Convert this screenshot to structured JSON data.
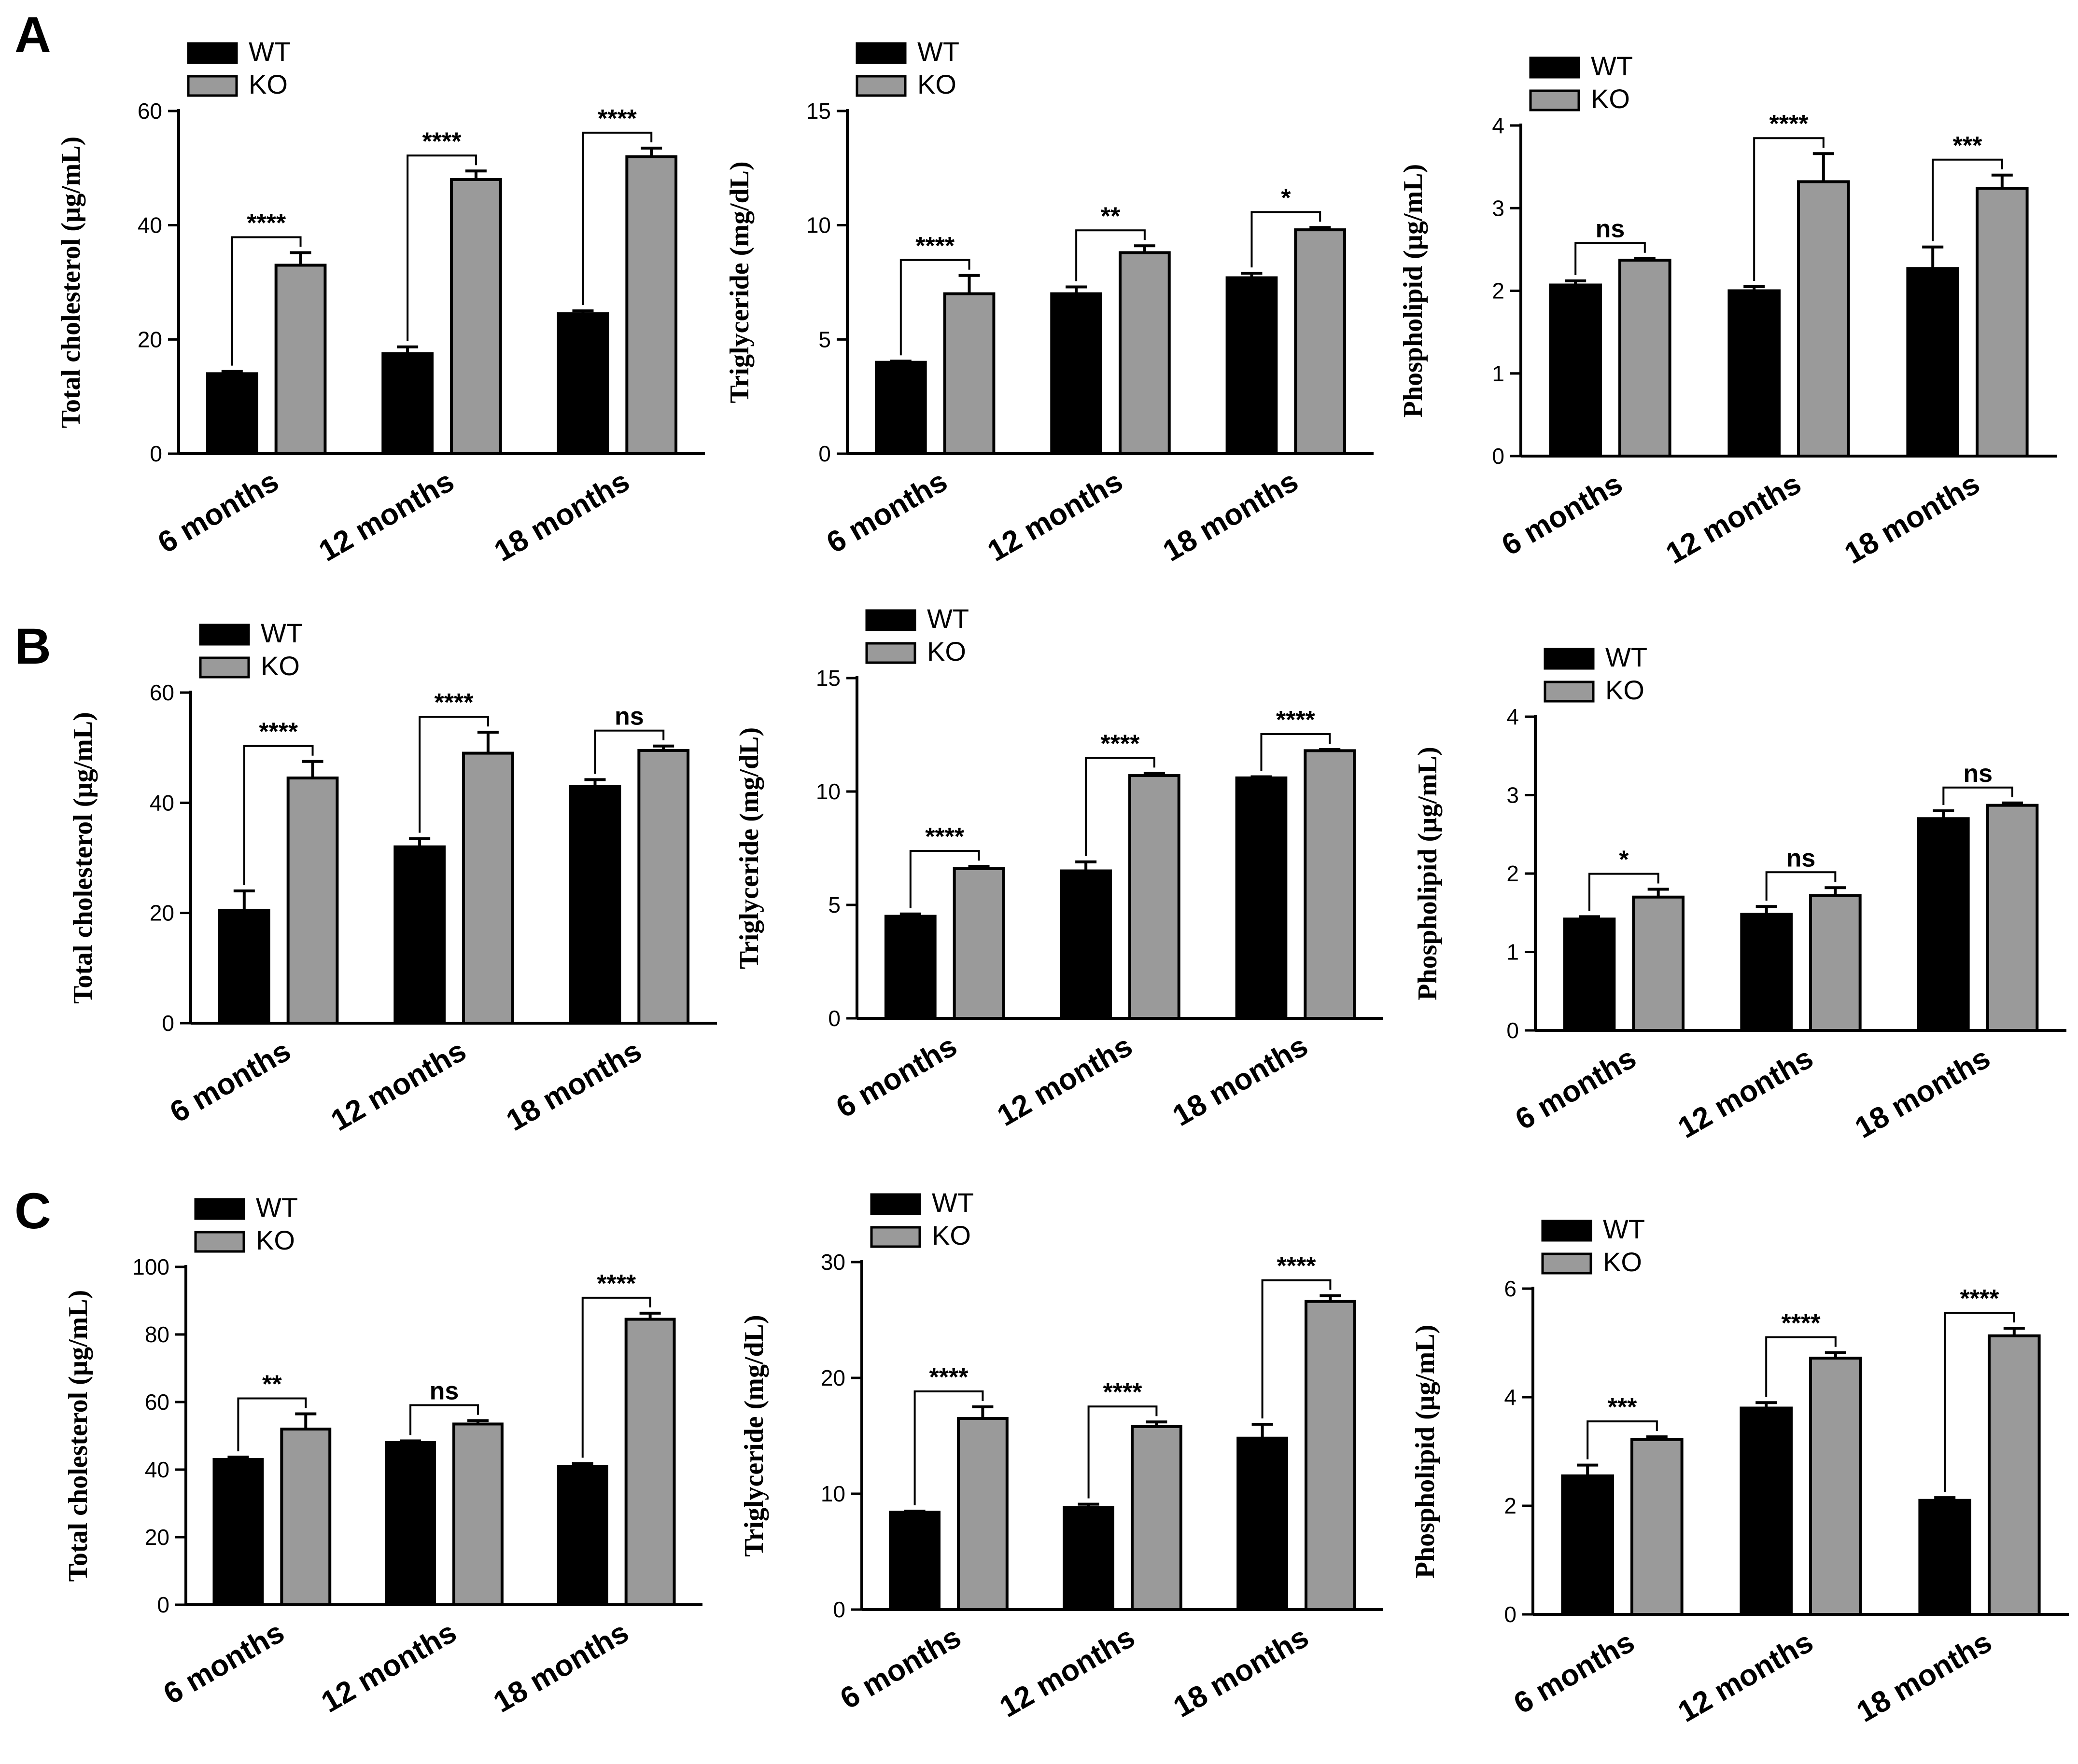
{
  "figure": {
    "panels": [
      "A",
      "B",
      "C"
    ],
    "colors": {
      "WT": "#000000",
      "KO": "#9a9a9a",
      "axis": "#000000"
    }
  },
  "chart_data": [
    {
      "type": "bar",
      "panel": "A",
      "ylabel": "Total cholesterol (µg/mL)",
      "categories": [
        "6 months",
        "12 months",
        "18 months"
      ],
      "ylim": [
        0,
        60
      ],
      "yticks": [
        "0",
        "20",
        "40",
        "60"
      ],
      "series": [
        {
          "name": "WT",
          "values": [
            14,
            17.5,
            24.5
          ],
          "errors": [
            0.4,
            1.2,
            0.5
          ]
        },
        {
          "name": "KO",
          "values": [
            33,
            48,
            52
          ],
          "errors": [
            2.2,
            1.5,
            1.5
          ]
        }
      ],
      "significance": [
        "****",
        "****",
        "****"
      ]
    },
    {
      "type": "bar",
      "panel": "A",
      "ylabel": "Triglyceride (mg/dL)",
      "categories": [
        "6 months",
        "12 months",
        "18 months"
      ],
      "ylim": [
        0,
        15
      ],
      "yticks": [
        "0",
        "5",
        "10",
        "15"
      ],
      "series": [
        {
          "name": "WT",
          "values": [
            4,
            7,
            7.7
          ],
          "errors": [
            0.05,
            0.3,
            0.2
          ]
        },
        {
          "name": "KO",
          "values": [
            7,
            8.8,
            9.8
          ],
          "errors": [
            0.8,
            0.3,
            0.1
          ]
        }
      ],
      "significance": [
        "****",
        "**",
        "*"
      ]
    },
    {
      "type": "bar",
      "panel": "A",
      "ylabel": "Phospholipid (µg/mL)",
      "categories": [
        "6 months",
        "12 months",
        "18 months"
      ],
      "ylim": [
        0,
        4
      ],
      "yticks": [
        "0",
        "1",
        "2",
        "3",
        "4"
      ],
      "series": [
        {
          "name": "WT",
          "values": [
            2.07,
            2.0,
            2.27
          ],
          "errors": [
            0.05,
            0.05,
            0.26
          ]
        },
        {
          "name": "KO",
          "values": [
            2.37,
            3.32,
            3.24
          ],
          "errors": [
            0.02,
            0.34,
            0.16
          ]
        }
      ],
      "significance": [
        "ns",
        "****",
        "***"
      ]
    },
    {
      "type": "bar",
      "panel": "B",
      "ylabel": "Total cholesterol (µg/mL)",
      "categories": [
        "6 months",
        "12 months",
        "18 months"
      ],
      "ylim": [
        0,
        60
      ],
      "yticks": [
        "0",
        "20",
        "40",
        "60"
      ],
      "series": [
        {
          "name": "WT",
          "values": [
            20.5,
            32,
            43
          ],
          "errors": [
            3.5,
            1.5,
            1.2
          ]
        },
        {
          "name": "KO",
          "values": [
            44.5,
            49,
            49.5
          ],
          "errors": [
            3,
            3.8,
            0.8
          ]
        }
      ],
      "significance": [
        "****",
        "****",
        "ns"
      ]
    },
    {
      "type": "bar",
      "panel": "B",
      "ylabel": "Triglyceride (mg/dL)",
      "categories": [
        "6 months",
        "12 months",
        "18 months"
      ],
      "ylim": [
        0,
        15
      ],
      "yticks": [
        "0",
        "5",
        "10",
        "15"
      ],
      "series": [
        {
          "name": "WT",
          "values": [
            4.5,
            6.5,
            10.6
          ],
          "errors": [
            0.1,
            0.4,
            0.05
          ]
        },
        {
          "name": "KO",
          "values": [
            6.6,
            10.7,
            11.8
          ],
          "errors": [
            0.1,
            0.1,
            0.05
          ]
        }
      ],
      "significance": [
        "****",
        "****",
        "****"
      ]
    },
    {
      "type": "bar",
      "panel": "B",
      "ylabel": "Phospholipid (µg/mL)",
      "categories": [
        "6 months",
        "12 months",
        "18 months"
      ],
      "ylim": [
        0,
        4
      ],
      "yticks": [
        "0",
        "1",
        "2",
        "3",
        "4"
      ],
      "series": [
        {
          "name": "WT",
          "values": [
            1.42,
            1.48,
            2.7
          ],
          "errors": [
            0.03,
            0.1,
            0.1
          ]
        },
        {
          "name": "KO",
          "values": [
            1.7,
            1.72,
            2.87
          ],
          "errors": [
            0.1,
            0.1,
            0.03
          ]
        }
      ],
      "significance": [
        "*",
        "ns",
        "ns"
      ]
    },
    {
      "type": "bar",
      "panel": "C",
      "ylabel": "Total cholesterol (µg/mL)",
      "categories": [
        "6 months",
        "12 months",
        "18 months"
      ],
      "ylim": [
        0,
        100
      ],
      "yticks": [
        "0",
        "20",
        "40",
        "60",
        "80",
        "100"
      ],
      "series": [
        {
          "name": "WT",
          "values": [
            43,
            48,
            41
          ],
          "errors": [
            0.7,
            0.5,
            0.8
          ]
        },
        {
          "name": "KO",
          "values": [
            52,
            53.5,
            84.5
          ],
          "errors": [
            4.5,
            1,
            1.8
          ]
        }
      ],
      "significance": [
        "**",
        "ns",
        "****"
      ]
    },
    {
      "type": "bar",
      "panel": "C",
      "ylabel": "Triglyceride (mg/dL)",
      "categories": [
        "6 months",
        "12 months",
        "18 months"
      ],
      "ylim": [
        0,
        30
      ],
      "yticks": [
        "0",
        "10",
        "20",
        "30"
      ],
      "series": [
        {
          "name": "WT",
          "values": [
            8.4,
            8.8,
            14.8
          ],
          "errors": [
            0.1,
            0.3,
            1.2
          ]
        },
        {
          "name": "KO",
          "values": [
            16.5,
            15.8,
            26.6
          ],
          "errors": [
            1,
            0.4,
            0.5
          ]
        }
      ],
      "significance": [
        "****",
        "****",
        "****"
      ]
    },
    {
      "type": "bar",
      "panel": "C",
      "ylabel": "Phospholipid (µg/mL)",
      "categories": [
        "6 months",
        "12 months",
        "18 months"
      ],
      "ylim": [
        0,
        6
      ],
      "yticks": [
        "0",
        "2",
        "4",
        "6"
      ],
      "series": [
        {
          "name": "WT",
          "values": [
            2.55,
            3.8,
            2.1
          ],
          "errors": [
            0.2,
            0.1,
            0.05
          ]
        },
        {
          "name": "KO",
          "values": [
            3.22,
            4.72,
            5.13
          ],
          "errors": [
            0.05,
            0.1,
            0.14
          ]
        }
      ],
      "significance": [
        "***",
        "****",
        "****"
      ]
    }
  ]
}
